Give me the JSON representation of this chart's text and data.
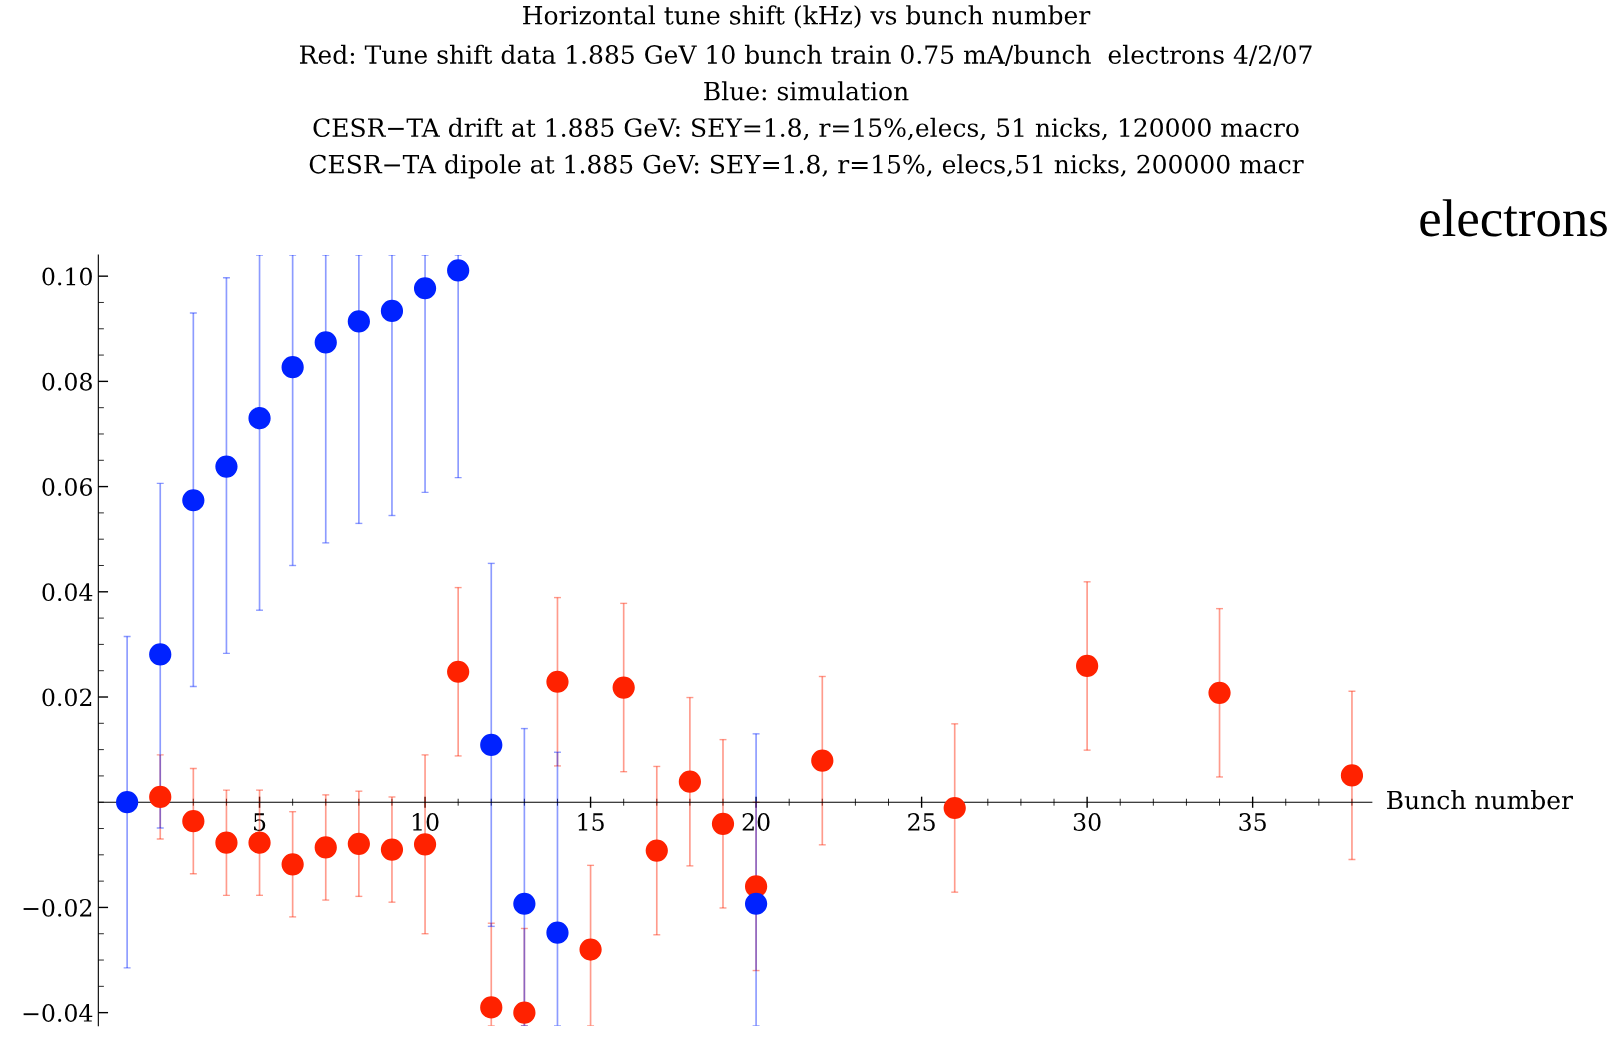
{
  "chart_data": {
    "type": "scatter",
    "title": "Horizontal tune shift (kHz) vs bunch number",
    "subtitle": "Red: Tune shift data 1.885 GeV 10 bunch train 0.75 mA/bunch  electrons 4/2/07\nBlue: simulation\nCESR−TA drift at 1.885 GeV: SEY=1.8, r=15%,elecs, 51 nicks, 120000 macro\nCESR−TA dipole at 1.885 GeV: SEY=1.8, r=15%, elecs,51 nicks, 200000 macr",
    "xlabel": "Bunch number",
    "annotations": [
      "electrons"
    ],
    "series": [
      {
        "color": "#ff2200",
        "x": [
          2,
          3,
          4,
          5,
          6,
          7,
          8,
          9,
          10,
          11,
          12,
          13,
          14,
          15,
          16,
          17,
          18,
          19,
          20,
          22,
          26,
          30,
          34,
          38
        ],
        "values": [
          0.001,
          -0.0036,
          -0.0077,
          -0.0077,
          -0.0118,
          -0.0086,
          -0.0079,
          -0.009,
          -0.008,
          0.0248,
          -0.039,
          -0.04,
          0.0229,
          -0.028,
          0.0218,
          -0.0092,
          0.0039,
          -0.0041,
          -0.016,
          0.0079,
          -0.0011,
          0.0259,
          0.0208,
          0.0051
        ],
        "errors": [
          [
            -0.007,
            0.009
          ],
          [
            -0.0136,
            0.0064
          ],
          [
            -0.0177,
            0.0023
          ],
          [
            -0.0177,
            0.0023
          ],
          [
            -0.0218,
            -0.0018
          ],
          [
            -0.0186,
            0.0014
          ],
          [
            -0.0179,
            0.0021
          ],
          [
            -0.019,
            0.001
          ],
          [
            -0.025,
            0.009
          ],
          [
            0.0088,
            0.0408
          ],
          [
            -0.0425,
            -0.023
          ],
          [
            -0.0425,
            -0.024
          ],
          [
            0.0069,
            0.0389
          ],
          [
            -0.0425,
            -0.012
          ],
          [
            0.0058,
            0.0378
          ],
          [
            -0.0252,
            0.0068
          ],
          [
            -0.0121,
            0.0199
          ],
          [
            -0.0201,
            0.0119
          ],
          [
            -0.032,
            0.0
          ],
          [
            -0.0081,
            0.0239
          ],
          [
            -0.0171,
            0.0149
          ],
          [
            0.0099,
            0.0419
          ],
          [
            0.0048,
            0.0368
          ],
          [
            -0.0109,
            0.0211
          ]
        ]
      },
      {
        "color": "#0022ff",
        "x": [
          1,
          2,
          3,
          4,
          5,
          6,
          7,
          8,
          9,
          10,
          11,
          12,
          13,
          14,
          20
        ],
        "values": [
          0.0,
          0.0281,
          0.0574,
          0.0638,
          0.073,
          0.0827,
          0.0874,
          0.0914,
          0.0934,
          0.0977,
          0.1011,
          0.0109,
          -0.0193,
          -0.0248,
          -0.0193
        ],
        "errors": [
          [
            -0.0315,
            0.0315
          ],
          [
            -0.0049,
            0.0606
          ],
          [
            0.022,
            0.093
          ],
          [
            0.0283,
            0.0997
          ],
          [
            0.0365,
            0.104
          ],
          [
            0.045,
            0.104
          ],
          [
            0.0493,
            0.104
          ],
          [
            0.053,
            0.104
          ],
          [
            0.0545,
            0.104
          ],
          [
            0.0589,
            0.104
          ],
          [
            0.0617,
            0.104
          ],
          [
            -0.0236,
            0.0454
          ],
          [
            -0.0425,
            0.014
          ],
          [
            -0.0425,
            0.0095
          ],
          [
            -0.0425,
            0.013
          ]
        ]
      }
    ],
    "xlim": [
      0.13,
      38.6
    ],
    "ylim": [
      -0.0425,
      0.104
    ],
    "xticks": [
      5,
      10,
      15,
      20,
      25,
      30,
      35
    ],
    "yticks": [
      {
        "value": -0.04,
        "label": "−0.04"
      },
      {
        "value": -0.02,
        "label": "−0.02"
      },
      0.02,
      0.04,
      0.06,
      0.08,
      {
        "value": 0.1,
        "label": "0.10"
      }
    ],
    "marker": "circle",
    "grid": false,
    "legend": false
  }
}
